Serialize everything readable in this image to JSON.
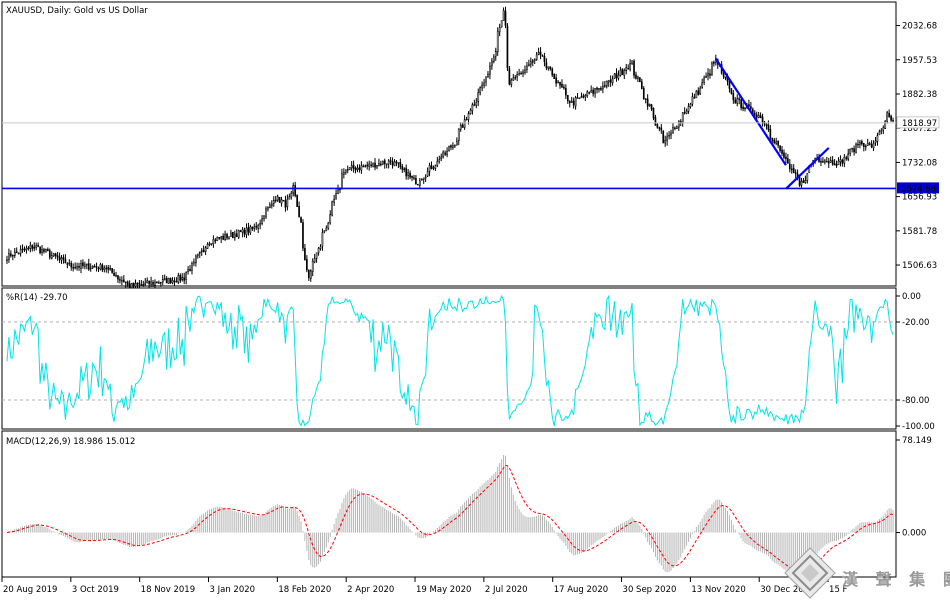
{
  "window": {
    "main_title": "XAUUSD, Daily:  Gold vs US Dollar",
    "wr_title": "%R(14) -29.70",
    "macd_title": "MACD(12,26,9) 18.986 15.012",
    "current_price_label": "1818.97",
    "support_label": "1674.98"
  },
  "watermark": {
    "text": "漢 聲 集 團"
  },
  "colors": {
    "candle": "#000000",
    "trendline": "#0000ff",
    "wr_line": "#00e5e5",
    "macd_hist": "#b4b4b4",
    "macd_signal": "#ff0000",
    "gridline": "#c8c8c8",
    "support_tag": "#0000cc"
  },
  "chart_data": [
    {
      "type": "candlestick",
      "title": "XAUUSD, Daily:  Gold vs US Dollar",
      "y_ticks": [
        "2032.68",
        "1957.53",
        "1882.38",
        "1807.23",
        "1732.08",
        "1656.93",
        "1581.78",
        "1506.63"
      ],
      "y_tick_values": [
        2032.68,
        1957.53,
        1882.38,
        1807.23,
        1732.08,
        1656.93,
        1581.78,
        1506.63
      ],
      "ylim": [
        1465,
        2080
      ],
      "x_ticks": [
        "20 Aug 2019",
        "3 Oct 2019",
        "18 Nov 2019",
        "3 Jan 2020",
        "18 Feb 2020",
        "2 Apr 2020",
        "19 May 2020",
        "2 Jul 2020",
        "17 Aug 2020",
        "30 Sep 2020",
        "13 Nov 2020",
        "30 Dec 2020",
        "15 F"
      ],
      "trendlines": [
        {
          "name": "support",
          "kind": "horizontal",
          "value": 1674.98
        },
        {
          "name": "downtrend",
          "from": {
            "date": "2021-01-06",
            "value": 1960
          },
          "to": {
            "date": "2021-02-25",
            "value": 1726
          }
        },
        {
          "name": "uptrend",
          "from": {
            "date": "2021-02-25",
            "value": 1674
          },
          "to": {
            "date": "2021-03-29",
            "value": 1764
          }
        }
      ],
      "current_price": 1818.97,
      "anchors": [
        {
          "date": "2019-08-15",
          "close": 1525
        },
        {
          "date": "2019-09-04",
          "close": 1548
        },
        {
          "date": "2019-10-01",
          "close": 1505
        },
        {
          "date": "2019-10-25",
          "close": 1502
        },
        {
          "date": "2019-11-12",
          "close": 1460
        },
        {
          "date": "2019-12-20",
          "close": 1478
        },
        {
          "date": "2020-01-08",
          "close": 1560
        },
        {
          "date": "2020-01-24",
          "close": 1572
        },
        {
          "date": "2020-02-10",
          "close": 1588
        },
        {
          "date": "2020-02-24",
          "close": 1655
        },
        {
          "date": "2020-03-03",
          "close": 1640
        },
        {
          "date": "2020-03-09",
          "close": 1675
        },
        {
          "date": "2020-03-19",
          "close": 1480
        },
        {
          "date": "2020-04-01",
          "close": 1592
        },
        {
          "date": "2020-04-14",
          "close": 1715
        },
        {
          "date": "2020-05-18",
          "close": 1735
        },
        {
          "date": "2020-06-05",
          "close": 1688
        },
        {
          "date": "2020-07-01",
          "close": 1770
        },
        {
          "date": "2020-07-27",
          "close": 1932
        },
        {
          "date": "2020-08-06",
          "close": 2060
        },
        {
          "date": "2020-08-11",
          "close": 1905
        },
        {
          "date": "2020-09-01",
          "close": 1968
        },
        {
          "date": "2020-09-24",
          "close": 1862
        },
        {
          "date": "2020-10-20",
          "close": 1905
        },
        {
          "date": "2020-11-06",
          "close": 1950
        },
        {
          "date": "2020-11-30",
          "close": 1775
        },
        {
          "date": "2020-12-21",
          "close": 1872
        },
        {
          "date": "2021-01-06",
          "close": 1955
        },
        {
          "date": "2021-01-20",
          "close": 1868
        },
        {
          "date": "2021-02-08",
          "close": 1830
        },
        {
          "date": "2021-02-26",
          "close": 1732
        },
        {
          "date": "2021-03-08",
          "close": 1680
        },
        {
          "date": "2021-03-18",
          "close": 1742
        },
        {
          "date": "2021-04-05",
          "close": 1730
        },
        {
          "date": "2021-04-19",
          "close": 1775
        },
        {
          "date": "2021-04-29",
          "close": 1769
        },
        {
          "date": "2021-05-10",
          "close": 1836
        },
        {
          "date": "2021-05-13",
          "close": 1819
        }
      ]
    },
    {
      "type": "line",
      "title": "%R(14) -29.70",
      "series_name": "%R(14)",
      "last_value": -29.7,
      "y_ticks": [
        "0.00",
        "-20.00",
        "-80.00",
        "-100.00"
      ],
      "y_tick_values": [
        0,
        -20,
        -80,
        -100
      ],
      "levels": [
        -20,
        -80
      ],
      "ylim": [
        -100,
        0
      ]
    },
    {
      "type": "bar",
      "title": "MACD(12,26,9) 18.986 15.012",
      "series_name": "MACD(12,26,9)",
      "macd": 18.986,
      "signal": 15.012,
      "y_ticks": [
        "78.149",
        "0.000"
      ],
      "y_tick_values": [
        78.149,
        0
      ],
      "ylim": [
        -35,
        78.149
      ],
      "signal_style": "red dashed line"
    }
  ]
}
